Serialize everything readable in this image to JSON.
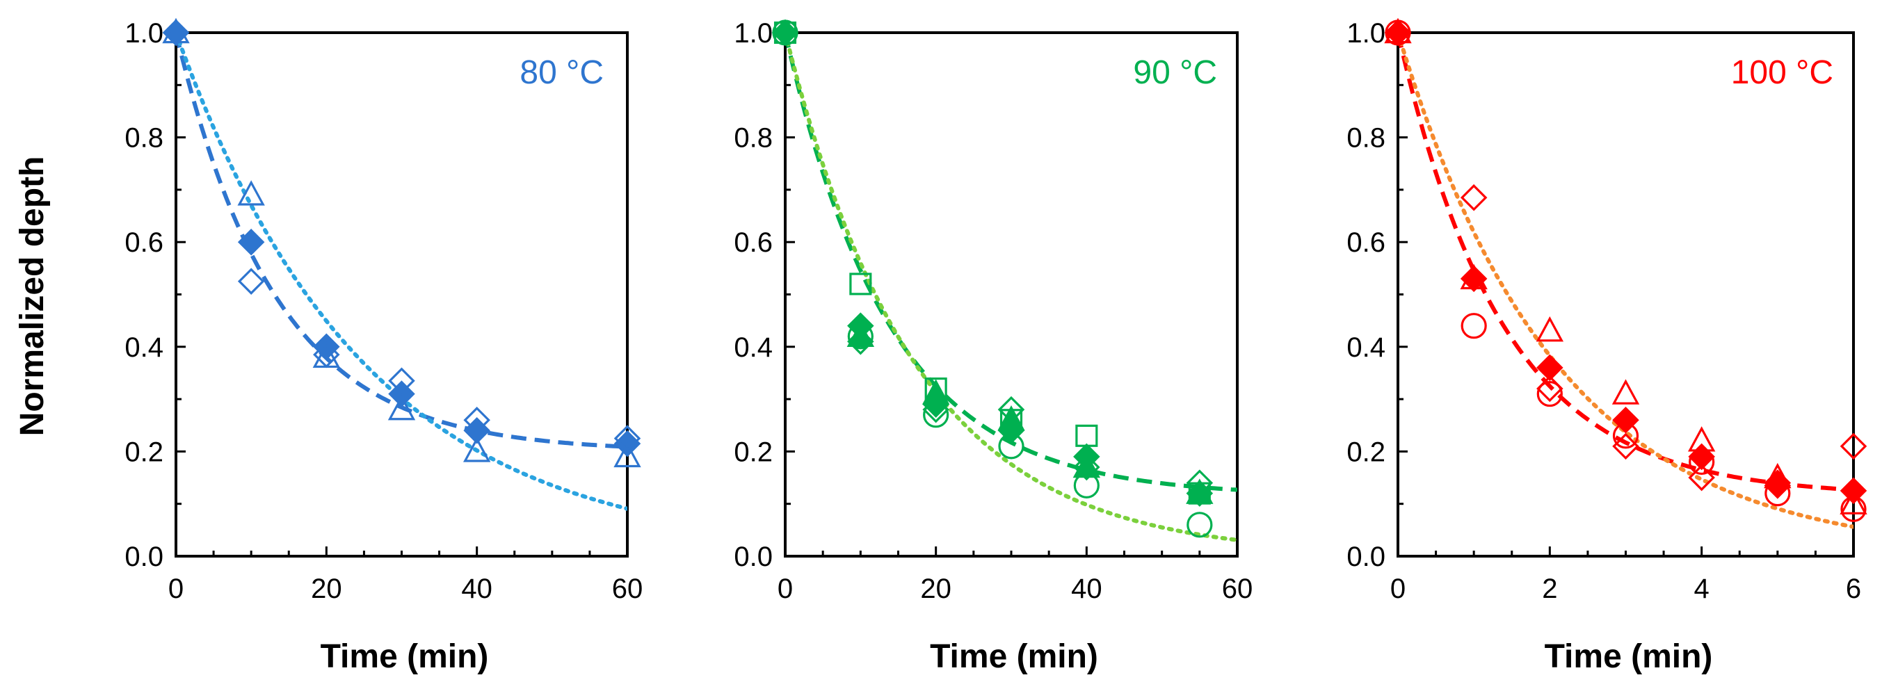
{
  "figure": {
    "ylabel": "Normalized depth"
  },
  "chart_data": [
    {
      "type": "scatter",
      "title": "80 °C",
      "color": "#2e75cf",
      "fit_colors": {
        "dashed": "#2e75cf",
        "dotted": "#2aa3e0"
      },
      "xlabel": "Time (min)",
      "ylabel": "Normalized depth",
      "xlim": [
        0,
        60
      ],
      "ylim": [
        0,
        1.0
      ],
      "xticks": [
        0,
        20,
        40,
        60
      ],
      "yticks": [
        "0.0",
        "0.2",
        "0.4",
        "0.6",
        "0.8",
        "1.0"
      ],
      "series": [
        {
          "name": "filled-diamond",
          "marker": "diamond",
          "filled": true,
          "x": [
            0,
            10,
            20,
            30,
            40,
            60
          ],
          "y": [
            1.0,
            0.6,
            0.4,
            0.31,
            0.24,
            0.215
          ]
        },
        {
          "name": "open-triangle",
          "marker": "triangle",
          "filled": false,
          "x": [
            0,
            10,
            20,
            30,
            40,
            60
          ],
          "y": [
            1.0,
            0.69,
            0.38,
            0.28,
            0.2,
            0.19
          ]
        },
        {
          "name": "open-diamond",
          "marker": "diamond",
          "filled": false,
          "x": [
            0,
            10,
            20,
            30,
            40,
            60
          ],
          "y": [
            1.0,
            0.525,
            0.385,
            0.335,
            0.26,
            0.225
          ]
        }
      ],
      "fits": [
        {
          "style": "dashed",
          "model": "exp_plateau",
          "plateau": 0.2,
          "k": 0.075
        },
        {
          "style": "dotted",
          "model": "exp",
          "plateau": 0.0,
          "k": 0.04
        }
      ]
    },
    {
      "type": "scatter",
      "title": "90 °C",
      "color": "#00b050",
      "fit_colors": {
        "dashed": "#00b050",
        "dotted": "#7bd03c"
      },
      "xlabel": "Time (min)",
      "ylabel": "",
      "xlim": [
        0,
        60
      ],
      "ylim": [
        0,
        1.0
      ],
      "xticks": [
        0,
        20,
        40,
        60
      ],
      "yticks": [
        "0.0",
        "0.2",
        "0.4",
        "0.6",
        "0.8",
        "1.0"
      ],
      "series": [
        {
          "name": "filled-diamond",
          "marker": "diamond",
          "filled": true,
          "x": [
            0,
            10,
            20,
            30,
            40,
            55
          ],
          "y": [
            1.0,
            0.44,
            0.29,
            0.24,
            0.19,
            0.12
          ]
        },
        {
          "name": "filled-triangle",
          "marker": "triangle",
          "filled": true,
          "x": [
            10,
            20,
            30,
            40,
            55
          ],
          "y": [
            0.42,
            0.31,
            0.26,
            0.17,
            0.12
          ]
        },
        {
          "name": "open-square",
          "marker": "square",
          "filled": false,
          "x": [
            0,
            10,
            20,
            30,
            40,
            55
          ],
          "y": [
            1.0,
            0.52,
            0.32,
            0.26,
            0.23,
            0.12
          ]
        },
        {
          "name": "open-diamond",
          "marker": "diamond",
          "filled": false,
          "x": [
            10,
            20,
            30,
            40,
            55
          ],
          "y": [
            0.41,
            0.28,
            0.28,
            0.17,
            0.14
          ]
        },
        {
          "name": "open-circle",
          "marker": "circle",
          "filled": false,
          "x": [
            0,
            10,
            20,
            30,
            40,
            55
          ],
          "y": [
            1.0,
            0.42,
            0.27,
            0.21,
            0.135,
            0.06
          ]
        }
      ],
      "fits": [
        {
          "style": "dashed",
          "model": "exp_plateau",
          "plateau": 0.115,
          "k": 0.072
        },
        {
          "style": "dotted",
          "model": "exp",
          "plateau": 0.0,
          "k": 0.058
        }
      ]
    },
    {
      "type": "scatter",
      "title": "100 °C",
      "color": "#ff0000",
      "fit_colors": {
        "dashed": "#ff0000",
        "dotted": "#f58a2e"
      },
      "xlabel": "Time (min)",
      "ylabel": "",
      "xlim": [
        0,
        6
      ],
      "ylim": [
        0,
        1.0
      ],
      "xticks": [
        0,
        2,
        4,
        6
      ],
      "yticks": [
        "0.0",
        "0.2",
        "0.4",
        "0.6",
        "0.8",
        "1.0"
      ],
      "series": [
        {
          "name": "filled-diamond",
          "marker": "diamond",
          "filled": true,
          "x": [
            0,
            1,
            2,
            3,
            4,
            5,
            6
          ],
          "y": [
            1.0,
            0.53,
            0.36,
            0.26,
            0.19,
            0.14,
            0.125
          ]
        },
        {
          "name": "open-triangle",
          "marker": "triangle",
          "filled": false,
          "x": [
            0,
            1,
            2,
            3,
            4,
            5,
            6
          ],
          "y": [
            1.0,
            0.53,
            0.43,
            0.31,
            0.22,
            0.15,
            0.1
          ]
        },
        {
          "name": "open-diamond",
          "marker": "diamond",
          "filled": false,
          "x": [
            0,
            1,
            2,
            3,
            4,
            5,
            6
          ],
          "y": [
            1.0,
            0.685,
            0.32,
            0.21,
            0.15,
            0.135,
            0.21
          ]
        },
        {
          "name": "open-circle",
          "marker": "circle",
          "filled": false,
          "x": [
            0,
            1,
            2,
            3,
            4,
            5,
            6
          ],
          "y": [
            1.0,
            0.44,
            0.31,
            0.23,
            0.18,
            0.12,
            0.09
          ]
        }
      ],
      "fits": [
        {
          "style": "dashed",
          "model": "exp_plateau",
          "plateau": 0.115,
          "k": 0.72
        },
        {
          "style": "dotted",
          "model": "exp",
          "plateau": 0.0,
          "k": 0.48
        }
      ]
    }
  ]
}
